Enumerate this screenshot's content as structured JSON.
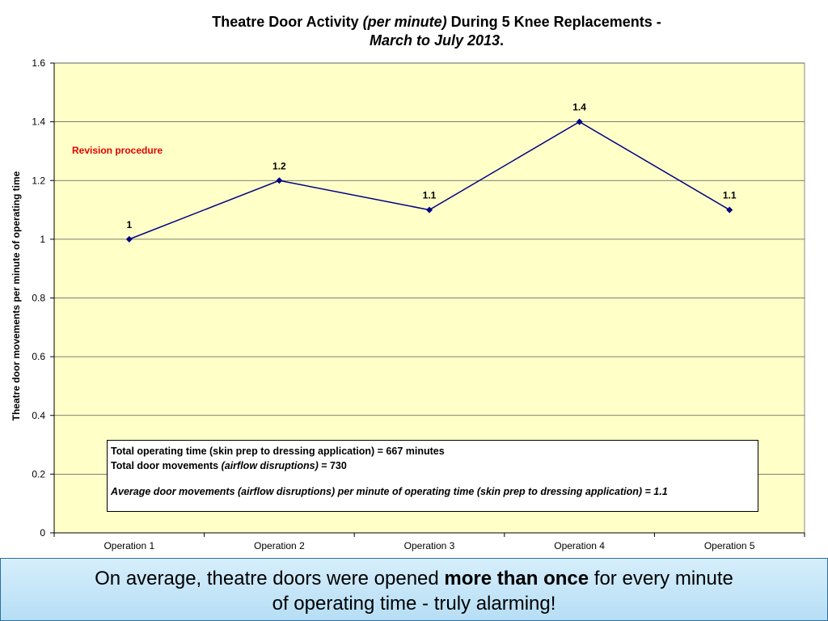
{
  "chart_data": {
    "type": "line",
    "title": {
      "part1": "Theatre Door Activity ",
      "part2": "(per minute)",
      "part3": " During 5 Knee Replacements -",
      "line2": "March to July 2013",
      "line2_end": "."
    },
    "ylabel": "Theatre door movements per minute of operating time",
    "categories": [
      "Operation 1",
      "Operation 2",
      "Operation 3",
      "Operation 4",
      "Operation 5"
    ],
    "values": [
      1,
      1.2,
      1.1,
      1.4,
      1.1
    ],
    "data_labels": [
      "1",
      "1.2",
      "1.1",
      "1.4",
      "1.1"
    ],
    "ylim": [
      0,
      1.6
    ],
    "yticks": [
      "0",
      "0.2",
      "0.4",
      "0.6",
      "0.8",
      "1",
      "1.2",
      "1.4",
      "1.6"
    ],
    "grid": true,
    "colors": {
      "line": "#000080",
      "plot_bg": "#ffffc8",
      "grid": "#555555",
      "annotation": "#e00000"
    },
    "annotation": "Revision procedure"
  },
  "info_box": {
    "line1": "Total operating time (skin prep to dressing application) = 667 minutes",
    "line2_a": "Total door movements ",
    "line2_b": "(airflow disruptions)",
    "line2_c": " = 730",
    "line3": "Average door movements (airflow disruptions) per minute of operating time (skin prep to dressing application) = 1.1"
  },
  "banner": {
    "part1": "On average, theatre doors were opened ",
    "bold": "more than once",
    "part2": " for every minute",
    "line2": "of operating time - truly alarming!"
  }
}
